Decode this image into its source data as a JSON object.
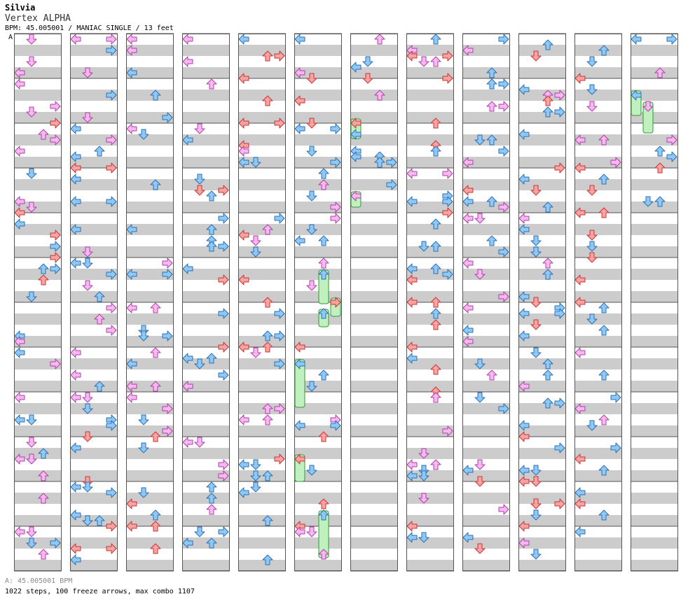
{
  "song": {
    "title": "Silvia",
    "artist": "Vertex ALPHA",
    "info": "BPM: 45.005001 / MANIAC SINGLE / 13 feet",
    "marker": "A"
  },
  "footer": {
    "bpm_line": "A: 45.005001 BPM",
    "stats": "1022 steps, 100 freeze arrows, max combo 1107"
  },
  "colors": {
    "page_bg": "#ffffff",
    "stripe": "#cccccc",
    "border": "#555555",
    "arrow_red": "#f5a3a3",
    "arrow_red_stroke": "#cc3333",
    "arrow_blue": "#8fc8f2",
    "arrow_blue_stroke": "#2b6fb5",
    "arrow_pink": "#f5b8f0",
    "arrow_pink_stroke": "#b040a8",
    "arrow_yellow": "#f5e04a",
    "arrow_yellow_stroke": "#a08800",
    "freeze_green": "#c0f0c0",
    "freeze_green_stroke": "#339933"
  },
  "chart_columns": 12,
  "measures_per_column": 12,
  "lanes": [
    "left",
    "down",
    "up",
    "right"
  ],
  "last_column_measures": 4,
  "note_colors_by_division": [
    "red",
    "blue",
    "pink",
    "yellow"
  ]
}
